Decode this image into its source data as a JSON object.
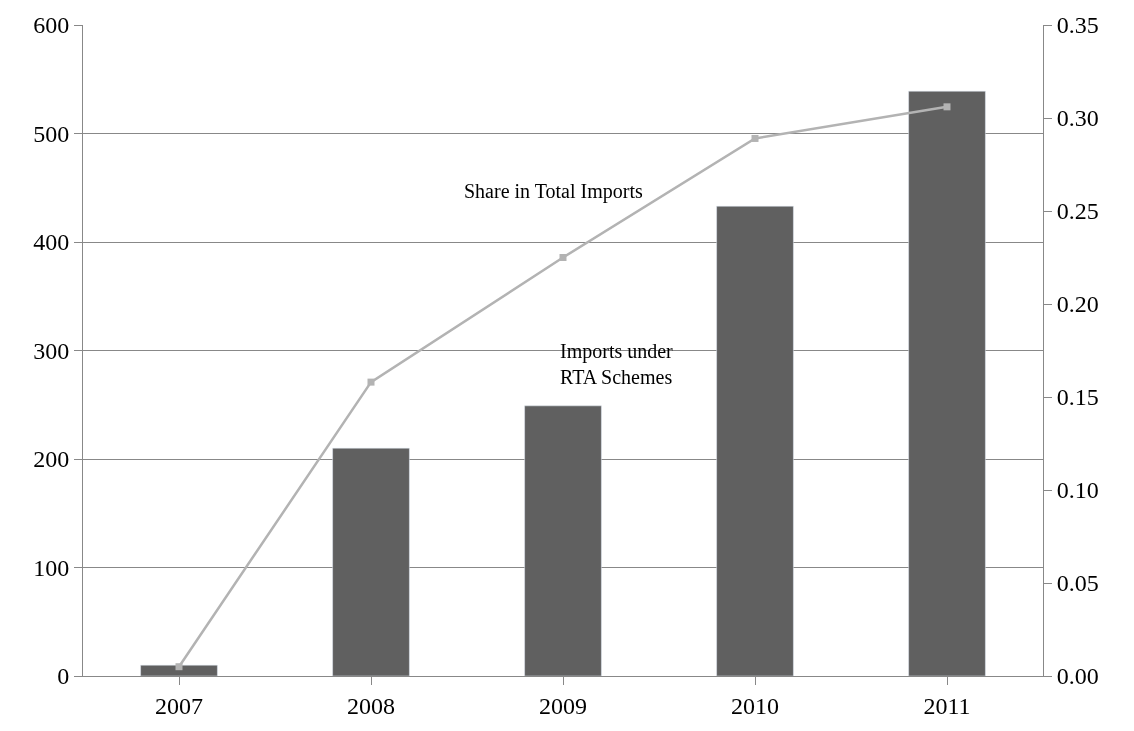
{
  "chart_data": {
    "type": "bar",
    "categories": [
      "2007",
      "2008",
      "2009",
      "2010",
      "2011"
    ],
    "series": [
      {
        "color": "#606060",
        "values": [
          10,
          210,
          249,
          433,
          539
        ]
      },
      {
        "type": "line",
        "axis": "y2",
        "color": "#b3b3b3",
        "marker": "square",
        "values": [
          0.005,
          0.158,
          0.225,
          0.289,
          0.306
        ]
      }
    ],
    "ylim": [
      0,
      600
    ],
    "yticks": [
      0,
      100,
      200,
      300,
      400,
      500,
      600
    ],
    "y2lim": [
      0,
      0.35
    ],
    "y2ticks": [
      {
        "value": 0,
        "label": "0.00"
      },
      {
        "value": 0.05,
        "label": "0.05"
      },
      {
        "value": 0.1,
        "label": "0.10"
      },
      {
        "value": 0.15,
        "label": "0.15"
      },
      {
        "value": 0.2,
        "label": "0.20"
      },
      {
        "value": 0.25,
        "label": "0.25"
      },
      {
        "value": 0.3,
        "label": "0.30"
      },
      {
        "value": 0.35,
        "label": "0.35"
      }
    ],
    "grid": "y",
    "legend": false,
    "annotations": [
      "Share in Total Imports",
      "Imports under RTA Schemes"
    ]
  }
}
